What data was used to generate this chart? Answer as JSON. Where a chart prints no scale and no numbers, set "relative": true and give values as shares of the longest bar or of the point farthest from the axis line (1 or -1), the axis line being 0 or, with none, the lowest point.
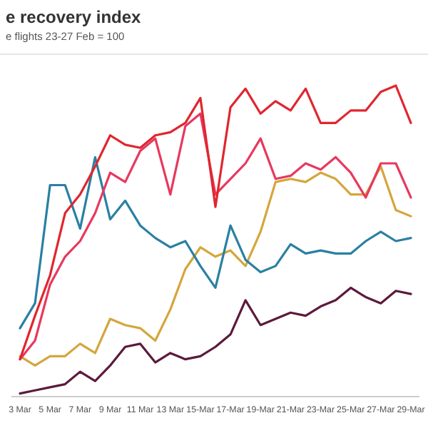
{
  "chart_data": {
    "type": "line",
    "title": "e recovery index",
    "subtitle": "e flights 23-27 Feb = 100",
    "relative": true,
    "categories": [
      "3 Mar",
      null,
      "5 Mar",
      null,
      "7 Mar",
      null,
      "9 Mar",
      null,
      "11 Mar",
      null,
      "13 Mar",
      null,
      "15-Mar",
      null,
      "17-Mar",
      null,
      "19-Mar",
      null,
      "21-Mar",
      null,
      "23-Mar",
      null,
      "25-Mar",
      null,
      "27-Mar",
      null,
      "29-Mar"
    ],
    "series": [
      {
        "color": "#5c1a3c",
        "values": [
          0.01,
          0.02,
          0.03,
          0.04,
          0.08,
          0.05,
          0.1,
          0.16,
          0.17,
          0.11,
          0.14,
          0.12,
          0.13,
          0.16,
          0.2,
          0.31,
          0.23,
          0.25,
          0.27,
          0.26,
          0.29,
          0.31,
          0.35,
          0.32,
          0.3,
          0.34,
          0.33
        ]
      },
      {
        "color": "#d4a63c",
        "values": [
          0.13,
          0.1,
          0.13,
          0.13,
          0.17,
          0.14,
          0.25,
          0.23,
          0.22,
          0.18,
          0.28,
          0.41,
          0.48,
          0.45,
          0.47,
          0.42,
          0.53,
          0.69,
          0.7,
          0.69,
          0.72,
          0.7,
          0.65,
          0.65,
          0.74,
          0.6,
          0.58
        ]
      },
      {
        "color": "#2a80a2",
        "values": [
          0.22,
          0.3,
          0.68,
          0.68,
          0.54,
          0.77,
          0.57,
          0.63,
          0.55,
          0.51,
          0.48,
          0.5,
          0.42,
          0.35,
          0.55,
          0.44,
          0.4,
          0.42,
          0.49,
          0.46,
          0.47,
          0.46,
          0.46,
          0.5,
          0.53,
          0.5,
          0.51
        ]
      },
      {
        "color": "#e8385e",
        "values": [
          0.12,
          0.18,
          0.36,
          0.45,
          0.5,
          0.59,
          0.72,
          0.69,
          0.79,
          0.83,
          0.65,
          0.87,
          0.91,
          0.65,
          0.7,
          0.75,
          0.83,
          0.7,
          0.71,
          0.75,
          0.73,
          0.77,
          0.72,
          0.64,
          0.75,
          0.75,
          0.64
        ]
      },
      {
        "color": "#e0262e",
        "values": [
          0.12,
          0.26,
          0.39,
          0.59,
          0.65,
          0.74,
          0.84,
          0.81,
          0.8,
          0.84,
          0.85,
          0.88,
          0.96,
          0.61,
          0.93,
          0.99,
          0.91,
          0.95,
          0.92,
          0.99,
          0.88,
          0.88,
          0.92,
          0.92,
          0.98,
          1.0,
          0.88
        ]
      }
    ]
  }
}
